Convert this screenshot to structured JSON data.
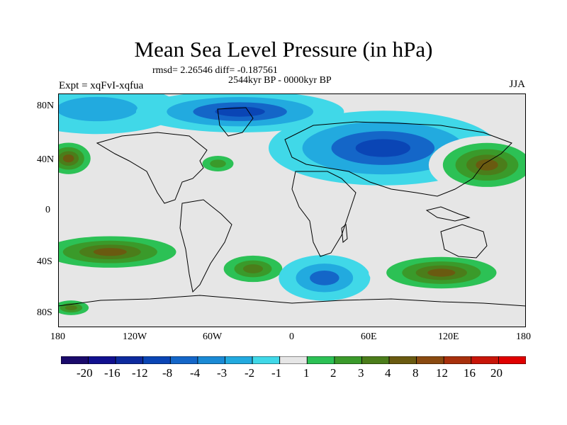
{
  "title": "Mean Sea Level Pressure (in hPa)",
  "stats": "rmsd= 2.26546 diff= -0.187561",
  "period": "2544kyr BP - 0000kyr BP",
  "experiment": "Expt = xqFvI-xqfua",
  "season": "JJA",
  "lat_ticks": [
    "80N",
    "40N",
    "0",
    "40S",
    "80S"
  ],
  "lon_ticks": [
    "180",
    "120W",
    "60W",
    "0",
    "60E",
    "120E",
    "180"
  ],
  "colorbar": {
    "labels": [
      "-20",
      "-16",
      "-12",
      "-8",
      "-4",
      "-3",
      "-2",
      "-1",
      "1",
      "2",
      "3",
      "4",
      "8",
      "12",
      "16",
      "20"
    ],
    "colors": [
      "#1a0a6b",
      "#11108f",
      "#0d2a9e",
      "#0a45b5",
      "#1466c8",
      "#1a8ad5",
      "#22aadf",
      "#40d8e8",
      "#e6e6e6",
      "#2cc155",
      "#3a9a2a",
      "#4b7d1a",
      "#6a5a10",
      "#8a4a10",
      "#a8300c",
      "#c81508",
      "#e00000"
    ]
  },
  "map_data": {
    "background": "#e6e6e6",
    "regions": [
      {
        "name": "n-pacific-low",
        "level": -2,
        "center": [
          -150,
          78
        ],
        "radius": [
          40,
          12
        ]
      },
      {
        "name": "arctic-low",
        "level": -8,
        "center": [
          -40,
          76
        ],
        "radius": [
          50,
          10
        ]
      },
      {
        "name": "eurasia-low",
        "level": -8,
        "center": [
          70,
          48
        ],
        "radius": [
          55,
          18
        ]
      },
      {
        "name": "n-pacific-high",
        "level": 8,
        "center": [
          -172,
          40
        ],
        "radius": [
          14,
          10
        ]
      },
      {
        "name": "n-atlantic-high",
        "level": 3,
        "center": [
          -57,
          36
        ],
        "radius": [
          12,
          6
        ]
      },
      {
        "name": "w-pacific-high",
        "level": 8,
        "center": [
          150,
          35
        ],
        "radius": [
          28,
          14
        ]
      },
      {
        "name": "s-pacific-high",
        "level": 8,
        "center": [
          -140,
          -32
        ],
        "radius": [
          42,
          10
        ]
      },
      {
        "name": "s-atlantic-high",
        "level": 4,
        "center": [
          -30,
          -45
        ],
        "radius": [
          20,
          9
        ]
      },
      {
        "name": "s-atlantic-low",
        "level": -4,
        "center": [
          25,
          -52
        ],
        "radius": [
          22,
          11
        ]
      },
      {
        "name": "indian-ocean-high",
        "level": 8,
        "center": [
          115,
          -48
        ],
        "radius": [
          35,
          10
        ]
      },
      {
        "name": "antarctic-high",
        "level": 4,
        "center": [
          -170,
          -75
        ],
        "radius": [
          12,
          5
        ]
      }
    ]
  }
}
